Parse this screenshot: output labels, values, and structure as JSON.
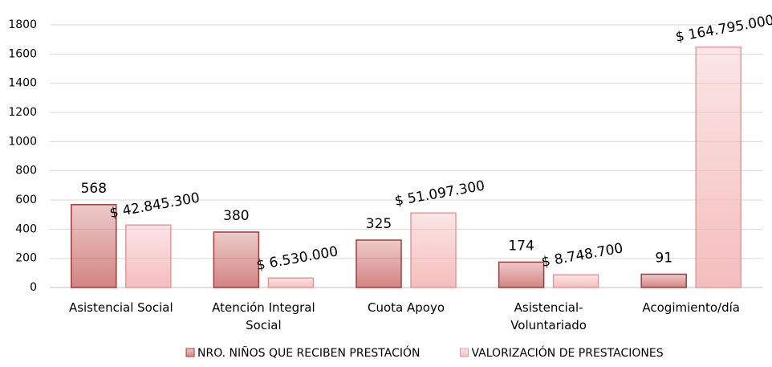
{
  "chart_data": {
    "type": "bar",
    "categories": [
      "Asistencial Social",
      "Atención Integral Social",
      "Cuota Apoyo",
      "Asistencial-Voluntariado",
      "Acogimiento/día"
    ],
    "series": [
      {
        "name": "NRO. NIÑOS QUE RECIBEN PRESTACIÓN",
        "color": "#c0504d",
        "values": [
          568,
          380,
          325,
          174,
          91
        ]
      },
      {
        "name": "VALORIZACIÓN DE PRESTACIONES",
        "color": "#f4b6b6",
        "values": [
          428.453,
          65.3,
          510.973,
          87.487,
          1647.95
        ],
        "value_labels": [
          "$ 42.845.300",
          "$ 6.530.000",
          "$ 51.097.300",
          "$ 8.748.700",
          "$ 164.795.000"
        ]
      }
    ],
    "ylim": [
      0,
      1800
    ],
    "yticks": [
      0,
      200,
      400,
      600,
      800,
      1000,
      1200,
      1400,
      1600,
      1800
    ],
    "grid": true,
    "legend": "bottom"
  }
}
